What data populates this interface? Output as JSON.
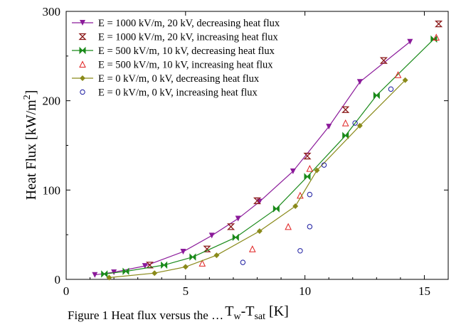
{
  "chart_data": {
    "type": "line",
    "xlabel_main": "T",
    "xlabel_sub1": "w",
    "xlabel_mid": "-T",
    "xlabel_sub2": "sat",
    "xlabel_unit": " [K]",
    "ylabel": "Heat Flux  [kW/m",
    "ylabel_sup": "2",
    "ylabel_end": "]",
    "xlim": [
      0,
      16
    ],
    "ylim": [
      0,
      300
    ],
    "x_ticks": [
      0,
      5,
      10,
      15
    ],
    "y_ticks": [
      0,
      100,
      200,
      300
    ],
    "grid": false,
    "legend_position": "top-left",
    "series": [
      {
        "name": "E = 1000 kV/m, 20 kV, decreasing heat flux",
        "color": "#8b1a9a",
        "marker": "triangle-down",
        "line": true,
        "x": [
          1.2,
          2.0,
          3.3,
          4.9,
          6.1,
          7.2,
          8.1,
          9.5,
          11.0,
          12.3,
          14.4
        ],
        "y": [
          5,
          8,
          15,
          31,
          49,
          68,
          87,
          121,
          171,
          221,
          266
        ]
      },
      {
        "name": "E = 1000 kV/m, 20 kV, increasing heat flux",
        "color": "#8b1a1a",
        "marker": "hourglass",
        "line": false,
        "x": [
          3.5,
          5.9,
          6.9,
          8.0,
          10.1,
          11.7,
          13.3,
          15.6
        ],
        "y": [
          16,
          34,
          59,
          88,
          138,
          190,
          245,
          286
        ]
      },
      {
        "name": "E = 500 kV/m, 10 kV, decreasing heat flux",
        "color": "#1a8a1a",
        "marker": "bowtie",
        "line": true,
        "x": [
          1.6,
          2.5,
          4.1,
          5.3,
          7.1,
          8.8,
          10.1,
          11.7,
          13.0,
          15.4
        ],
        "y": [
          6,
          9,
          16,
          25,
          47,
          79,
          115,
          161,
          206,
          269
        ]
      },
      {
        "name": "E = 500 kV/m, 10 kV, increasing heat flux",
        "color": "#e02020",
        "marker": "triangle-up-open",
        "line": false,
        "x": [
          5.7,
          7.8,
          9.3,
          9.8,
          10.2,
          11.7,
          13.9,
          15.5
        ],
        "y": [
          18,
          34,
          59,
          94,
          124,
          175,
          229,
          271
        ]
      },
      {
        "name": "E = 0 kV/m, 0 kV, decreasing heat flux",
        "color": "#8a8a1a",
        "marker": "diamond",
        "line": true,
        "x": [
          1.8,
          3.7,
          5.0,
          6.3,
          8.1,
          9.6,
          10.5,
          12.3,
          14.2
        ],
        "y": [
          2,
          7,
          14,
          27,
          54,
          82,
          122,
          172,
          223
        ]
      },
      {
        "name": "E = 0 kV/m, 0 kV, increasing heat flux",
        "color": "#1a1aa0",
        "marker": "circle-open",
        "line": false,
        "x": [
          7.4,
          9.8,
          10.2,
          10.2,
          10.8,
          12.1,
          13.6
        ],
        "y": [
          19,
          32,
          59,
          95,
          128,
          175,
          213
        ]
      }
    ]
  },
  "caption": "Figure 1 Heat flux versus the …"
}
